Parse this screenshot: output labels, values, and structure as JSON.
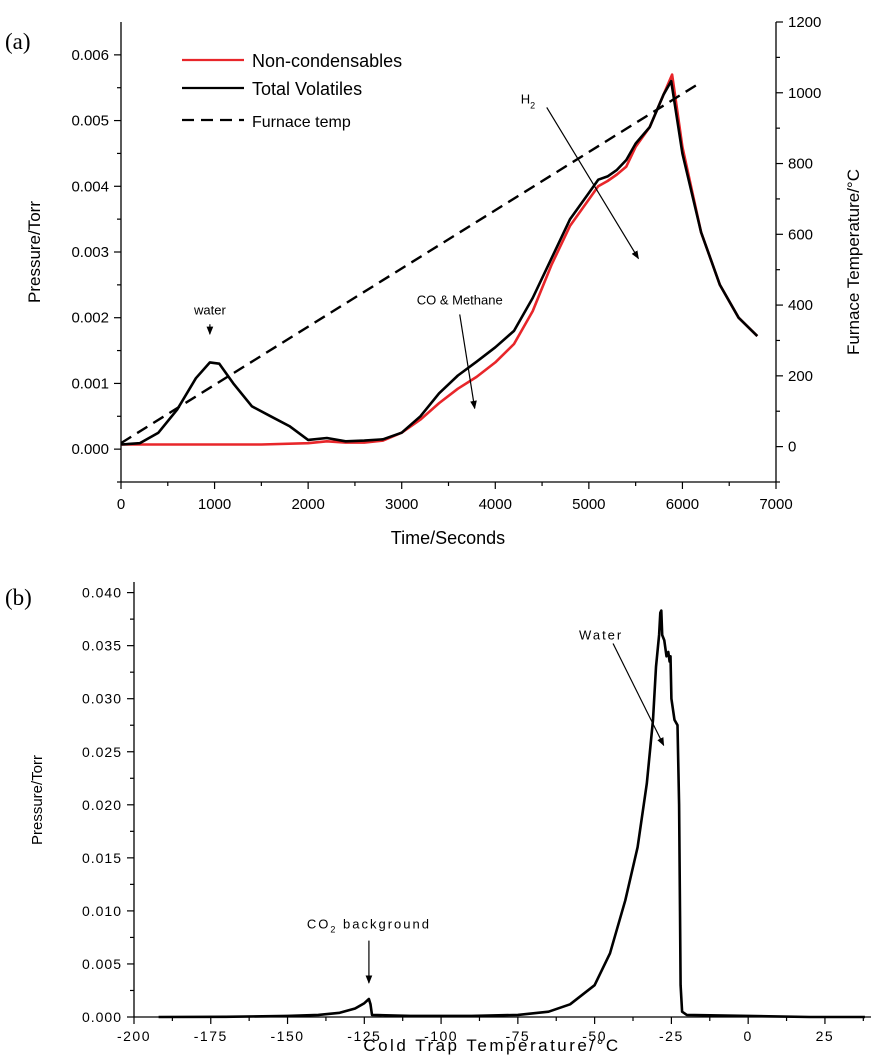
{
  "chart_data": [
    {
      "type": "line",
      "panel_label": "(a)",
      "xlabel": "Time/Seconds",
      "ylabel": "Pressure/Torr",
      "y2label": "Furnace Temperature/°C",
      "xlim": [
        0,
        7000
      ],
      "ylim": [
        -0.0005,
        0.0065
      ],
      "y2lim": [
        -100,
        1200
      ],
      "xticks": [
        0,
        1000,
        2000,
        3000,
        4000,
        5000,
        6000,
        7000
      ],
      "xtick_labels": [
        "0",
        "1000",
        "2000",
        "3000",
        "4000",
        "5000",
        "6000",
        "7000"
      ],
      "yticks": [
        0,
        0.001,
        0.002,
        0.003,
        0.004,
        0.005,
        0.006
      ],
      "ytick_labels": [
        "0.000",
        "0.001",
        "0.002",
        "0.003",
        "0.004",
        "0.005",
        "0.006"
      ],
      "y2ticks": [
        0,
        200,
        400,
        600,
        800,
        1000,
        1200
      ],
      "y2tick_labels": [
        "0",
        "200",
        "400",
        "600",
        "800",
        "1000",
        "1200"
      ],
      "legend_position": "top-left",
      "grid": false,
      "series": [
        {
          "name": "Non-condensables",
          "color": "#e8262a",
          "axis": "left",
          "style": "solid",
          "points": [
            [
              0,
              7e-05
            ],
            [
              500,
              7e-05
            ],
            [
              1000,
              7e-05
            ],
            [
              1500,
              7e-05
            ],
            [
              2000,
              9e-05
            ],
            [
              2200,
              0.00012
            ],
            [
              2400,
              0.0001
            ],
            [
              2600,
              0.0001
            ],
            [
              2800,
              0.00013
            ],
            [
              3000,
              0.00025
            ],
            [
              3200,
              0.00045
            ],
            [
              3400,
              0.0007
            ],
            [
              3600,
              0.00092
            ],
            [
              3800,
              0.0011
            ],
            [
              4000,
              0.00132
            ],
            [
              4200,
              0.0016
            ],
            [
              4400,
              0.0021
            ],
            [
              4600,
              0.0028
            ],
            [
              4800,
              0.0034
            ],
            [
              5000,
              0.0038
            ],
            [
              5100,
              0.004
            ],
            [
              5200,
              0.00408
            ],
            [
              5300,
              0.00418
            ],
            [
              5400,
              0.0043
            ],
            [
              5500,
              0.0046
            ],
            [
              5650,
              0.0049
            ],
            [
              5800,
              0.0054
            ],
            [
              5890,
              0.0057
            ],
            [
              6000,
              0.0046
            ],
            [
              6200,
              0.0033
            ],
            [
              6400,
              0.0025
            ],
            [
              6600,
              0.002
            ],
            [
              6800,
              0.00172
            ]
          ]
        },
        {
          "name": "Total Volatiles",
          "color": "#000000",
          "axis": "left",
          "style": "solid",
          "points": [
            [
              0,
              7e-05
            ],
            [
              200,
              9e-05
            ],
            [
              400,
              0.00025
            ],
            [
              600,
              0.0006
            ],
            [
              800,
              0.00108
            ],
            [
              950,
              0.00132
            ],
            [
              1050,
              0.0013
            ],
            [
              1200,
              0.001
            ],
            [
              1400,
              0.00065
            ],
            [
              1600,
              0.0005
            ],
            [
              1800,
              0.00035
            ],
            [
              2000,
              0.00014
            ],
            [
              2200,
              0.00017
            ],
            [
              2400,
              0.00012
            ],
            [
              2600,
              0.00013
            ],
            [
              2800,
              0.00015
            ],
            [
              3000,
              0.00025
            ],
            [
              3200,
              0.0005
            ],
            [
              3400,
              0.00085
            ],
            [
              3600,
              0.00112
            ],
            [
              3800,
              0.00133
            ],
            [
              4000,
              0.00155
            ],
            [
              4200,
              0.0018
            ],
            [
              4400,
              0.0023
            ],
            [
              4600,
              0.0029
            ],
            [
              4800,
              0.0035
            ],
            [
              5000,
              0.0039
            ],
            [
              5100,
              0.0041
            ],
            [
              5200,
              0.00415
            ],
            [
              5300,
              0.00425
            ],
            [
              5400,
              0.0044
            ],
            [
              5500,
              0.00465
            ],
            [
              5650,
              0.0049
            ],
            [
              5800,
              0.0054
            ],
            [
              5880,
              0.0056
            ],
            [
              6000,
              0.0045
            ],
            [
              6200,
              0.0033
            ],
            [
              6400,
              0.0025
            ],
            [
              6600,
              0.002
            ],
            [
              6800,
              0.00172
            ]
          ]
        },
        {
          "name": "Furnace temp",
          "color": "#000000",
          "axis": "right",
          "style": "dashed",
          "points": [
            [
              0,
              10
            ],
            [
              6200,
              1030
            ]
          ]
        }
      ],
      "annotations": [
        {
          "text": "water",
          "arrow_from": [
            950,
            0.0019
          ],
          "arrow_to": [
            950,
            0.00175
          ]
        },
        {
          "text": "CO & Methane",
          "arrow_from": [
            3620,
            0.00205
          ],
          "arrow_to": [
            3780,
            0.00062
          ]
        },
        {
          "text": "H",
          "subscript": "2",
          "arrow_from": [
            4550,
            0.0052
          ],
          "arrow_to": [
            5530,
            0.0029
          ]
        }
      ]
    },
    {
      "type": "line",
      "panel_label": "(b)",
      "xlabel": "Cold Trap Temperature/°C",
      "ylabel": "Pressure/Torr",
      "xlim": [
        -200,
        40
      ],
      "ylim": [
        0,
        0.041
      ],
      "xticks": [
        -200,
        -175,
        -150,
        -125,
        -100,
        -75,
        -50,
        -25,
        0,
        25
      ],
      "xtick_labels": [
        "-200",
        "-175",
        "-150",
        "-125",
        "-100",
        "-75",
        "-50",
        "-25",
        "0",
        "25"
      ],
      "yticks": [
        0,
        0.005,
        0.01,
        0.015,
        0.02,
        0.025,
        0.03,
        0.035,
        0.04
      ],
      "ytick_labels": [
        "0.000",
        "0.005",
        "0.010",
        "0.015",
        "0.020",
        "0.025",
        "0.030",
        "0.035",
        "0.040"
      ],
      "grid": false,
      "series": [
        {
          "color": "#000000",
          "points": [
            [
              -192,
              0
            ],
            [
              -170,
              2e-05
            ],
            [
              -150,
              0.0001
            ],
            [
              -140,
              0.0002
            ],
            [
              -133,
              0.0004
            ],
            [
              -128,
              0.0008
            ],
            [
              -125,
              0.0013
            ],
            [
              -123.5,
              0.0017
            ],
            [
              -123,
              0.0012
            ],
            [
              -122.5,
              0.0002
            ],
            [
              -110,
              0.0001
            ],
            [
              -90,
              0.0001
            ],
            [
              -75,
              0.0002
            ],
            [
              -65,
              0.0005
            ],
            [
              -58,
              0.0012
            ],
            [
              -50,
              0.003
            ],
            [
              -45,
              0.006
            ],
            [
              -40,
              0.011
            ],
            [
              -36,
              0.016
            ],
            [
              -33,
              0.022
            ],
            [
              -31,
              0.028
            ],
            [
              -30,
              0.033
            ],
            [
              -29,
              0.036
            ],
            [
              -28.6,
              0.0381
            ],
            [
              -28.3,
              0.0383
            ],
            [
              -28,
              0.036
            ],
            [
              -27.3,
              0.0355
            ],
            [
              -26.6,
              0.034
            ],
            [
              -26,
              0.0344
            ],
            [
              -25.6,
              0.0335
            ],
            [
              -25.3,
              0.034
            ],
            [
              -25,
              0.03
            ],
            [
              -24,
              0.028
            ],
            [
              -23,
              0.0275
            ],
            [
              -22.5,
              0.02
            ],
            [
              -22.2,
              0.01
            ],
            [
              -22,
              0.003
            ],
            [
              -21.5,
              0.0005
            ],
            [
              -20,
              0.0002
            ],
            [
              0,
              0.0001
            ],
            [
              20,
              0
            ],
            [
              38,
              0
            ]
          ]
        }
      ],
      "annotations": [
        {
          "text": "CO",
          "subscript": "2",
          "suffix": " background",
          "arrow_from": [
            -123.5,
            0.0072
          ],
          "arrow_to": [
            -123.5,
            0.0032
          ]
        },
        {
          "text": "Water",
          "arrow_from": [
            -44,
            0.0352
          ],
          "arrow_to": [
            -27.5,
            0.0256
          ]
        }
      ]
    }
  ]
}
